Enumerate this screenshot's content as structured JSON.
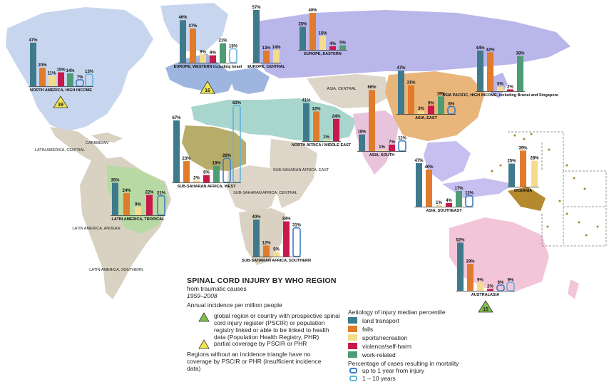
{
  "title": "SPINAL CORD INJURY BY WHO REGION",
  "subtitle": "from traumatic causes",
  "years": "1959–2008",
  "incidence_heading": "Annual incidence per million people",
  "legend_triangle_green": "global region or country with prospective spinal cord injury register (PSCIR) or population registry linked or able to be linked to health data (Population Health Registry, PHR)",
  "legend_triangle_yellow": "partial coverage by PSCIR or PHR",
  "legend_no_triangle": "Regions without an incidence triangle have no coverage by PSCIR or PHR (insufficient incidence data)",
  "aetiology_heading": "Aetiology of injury median percentile",
  "categories": [
    {
      "label": "land transport",
      "color": "#3f7a8c"
    },
    {
      "label": "falls",
      "color": "#e07b2c"
    },
    {
      "label": "sports/recreation",
      "color": "#f3dc8c"
    },
    {
      "label": "violence/self-harm",
      "color": "#c9184a"
    },
    {
      "label": "work-related",
      "color": "#4e9c74"
    }
  ],
  "mortality_heading": "Percentage of cases resulting in mortality",
  "mortality": [
    {
      "label": "up to 1 year from injury",
      "color": "#3d7cc3"
    },
    {
      "label": "1 – 10 years",
      "color": "#61b4dc"
    }
  ],
  "regions": [
    {
      "name": "NORTH AMERICA, HIGH INCOME",
      "values": [
        "47%",
        "20%",
        "11%",
        "15%",
        "14%"
      ],
      "mort": [
        "7%",
        "13%"
      ],
      "incidence": "39",
      "registry": "full"
    },
    {
      "name": "EUROPE, WESTERN including Israel",
      "values": [
        "46%",
        "37%",
        "9%",
        "8%",
        "21%"
      ],
      "mort": [
        "",
        "15%"
      ],
      "incidence": "16",
      "registry": "partial"
    },
    {
      "name": "EUROPE, CENTRAL",
      "values": [
        "57%",
        "13%",
        "14%",
        "",
        ""
      ],
      "mort": [
        "",
        ""
      ]
    },
    {
      "name": "EUROPE, EASTERN",
      "values": [
        "25%",
        "40%",
        "15%",
        "4%",
        "5%"
      ],
      "mort": [
        "",
        ""
      ]
    },
    {
      "name": "ASIA PACIFIC, HIGH INCOME, including Brunei and Singapore",
      "values": [
        "44%",
        "42%",
        "5%",
        "2%",
        "38%"
      ],
      "mort": [
        "",
        ""
      ]
    },
    {
      "name": "ASIA, EAST",
      "values": [
        "47%",
        "31%",
        "3%",
        "9%",
        "19%"
      ],
      "mort": [
        "8%",
        ""
      ]
    },
    {
      "name": "NORTH AFRICA / MIDDLE EAST",
      "values": [
        "41%",
        "32%",
        "1%",
        "24%",
        ""
      ],
      "mort": [
        "",
        ""
      ]
    },
    {
      "name": "ASIA, SOUTH",
      "values": [
        "18%",
        "66%",
        "1%",
        "7%",
        ""
      ],
      "mort": [
        "11%",
        ""
      ]
    },
    {
      "name": "SUB-SAHARAN AFRICA, WEST",
      "values": [
        "67%",
        "23%",
        "2%",
        "8%",
        "18%"
      ],
      "mort": [
        "26%",
        "83%"
      ]
    },
    {
      "name": "ASIA, SOUTHEAST",
      "values": [
        "47%",
        "40%",
        "1%",
        "4%",
        "17%"
      ],
      "mort": [
        "12%",
        ""
      ]
    },
    {
      "name": "OCEANIA",
      "values": [
        "25%",
        "39%",
        "28%",
        "",
        ""
      ],
      "mort": [
        "",
        ""
      ]
    },
    {
      "name": "LATIN AMERICA, TROPICAL",
      "values": [
        "35%",
        "24%",
        "9%",
        "22%",
        ""
      ],
      "mort": [
        "21%",
        ""
      ]
    },
    {
      "name": "SUB-SAHARAN AFRICA, SOUTHERN",
      "values": [
        "40%",
        "12%",
        "5%",
        "38%",
        ""
      ],
      "mort": [
        "31%",
        ""
      ]
    },
    {
      "name": "AUSTRALASIA",
      "values": [
        "52%",
        "29%",
        "9%",
        "2%",
        ""
      ],
      "mort": [
        "6%",
        "9%"
      ],
      "incidence": "15",
      "registry": "full"
    }
  ],
  "map_labels": [
    "CARIBBEAN",
    "LATIN AMERICA, CENTRAL",
    "LATIN AMERICA, ANDEAN",
    "LATIN AMERICA, SOUTHERN",
    "ASIA, CENTRAL",
    "SUB-SAHARAN AFRICA, CENTRAL",
    "SUB-SAHARAN AFRICA, EAST"
  ]
}
